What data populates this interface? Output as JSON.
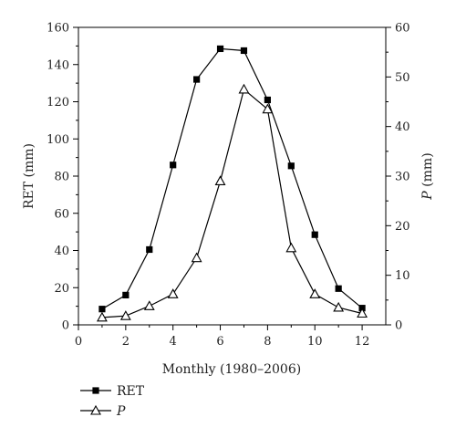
{
  "chart_data": {
    "type": "line",
    "xlabel": "Monthly (1980–2006)",
    "ylabel_left": "RET (mm)",
    "ylabel_right_italic": "P",
    "ylabel_right_rest": " (mm)",
    "xlim": [
      0,
      13
    ],
    "ylim_left": [
      0,
      160
    ],
    "ylim_right": [
      0,
      60
    ],
    "x_ticks": [
      0,
      2,
      4,
      6,
      8,
      10,
      12
    ],
    "y_ticks_left": [
      0,
      20,
      40,
      60,
      80,
      100,
      120,
      140,
      160
    ],
    "y_ticks_right": [
      0,
      10,
      20,
      30,
      40,
      50,
      60
    ],
    "grid": false,
    "legend_position": "bottom-left",
    "x": [
      1,
      2,
      3,
      4,
      5,
      6,
      7,
      8,
      9,
      10,
      11,
      12
    ],
    "series": [
      {
        "name": "RET",
        "axis": "left",
        "marker": "filled-square",
        "values": [
          8.5,
          16,
          40.5,
          86,
          132,
          148.5,
          147.5,
          121,
          85.5,
          48.5,
          19.5,
          9
        ]
      },
      {
        "name": "P",
        "italic": true,
        "axis": "right",
        "marker": "open-triangle",
        "values": [
          1.5,
          1.8,
          3.8,
          6.2,
          13.5,
          29,
          47.5,
          43.5,
          15.5,
          6.2,
          3.5,
          2.3
        ]
      }
    ],
    "colors": {
      "line": "#000000",
      "axis": "#000000"
    }
  }
}
